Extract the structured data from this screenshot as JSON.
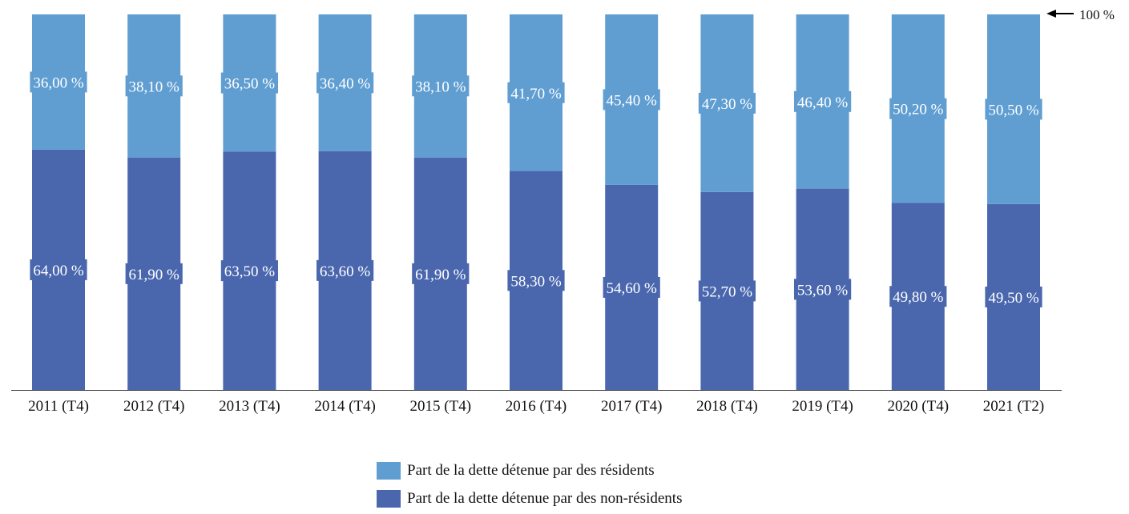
{
  "chart_data": {
    "type": "bar",
    "stacked": true,
    "categories": [
      "2011 (T4)",
      "2012 (T4)",
      "2013 (T4)",
      "2014 (T4)",
      "2015 (T4)",
      "2016 (T4)",
      "2017 (T4)",
      "2018 (T4)",
      "2019 (T4)",
      "2020 (T4)",
      "2021 (T2)"
    ],
    "series": [
      {
        "name": "Part de la dette détenue par des non-résidents",
        "color": "#4a67ae",
        "values": [
          64.0,
          61.9,
          63.5,
          63.6,
          61.9,
          58.3,
          54.6,
          52.7,
          53.6,
          49.8,
          49.5
        ],
        "labels": [
          "64,00 %",
          "61,90 %",
          "63,50 %",
          "63,60 %",
          "61,90 %",
          "58,30 %",
          "54,60 %",
          "52,70 %",
          "53,60 %",
          "49,80 %",
          "49,50 %"
        ]
      },
      {
        "name": "Part de la dette détenue par des résidents",
        "color": "#609ed2",
        "values": [
          36.0,
          38.1,
          36.5,
          36.4,
          38.1,
          41.7,
          45.4,
          47.3,
          46.4,
          50.2,
          50.5
        ],
        "labels": [
          "36,00 %",
          "38,10 %",
          "36,50 %",
          "36,40 %",
          "38,10 %",
          "41,70 %",
          "45,40 %",
          "47,30 %",
          "46,40 %",
          "50,20 %",
          "50,50 %"
        ]
      }
    ],
    "annotation": "100 %",
    "ylim": [
      0,
      100
    ],
    "legend_position": "bottom"
  }
}
